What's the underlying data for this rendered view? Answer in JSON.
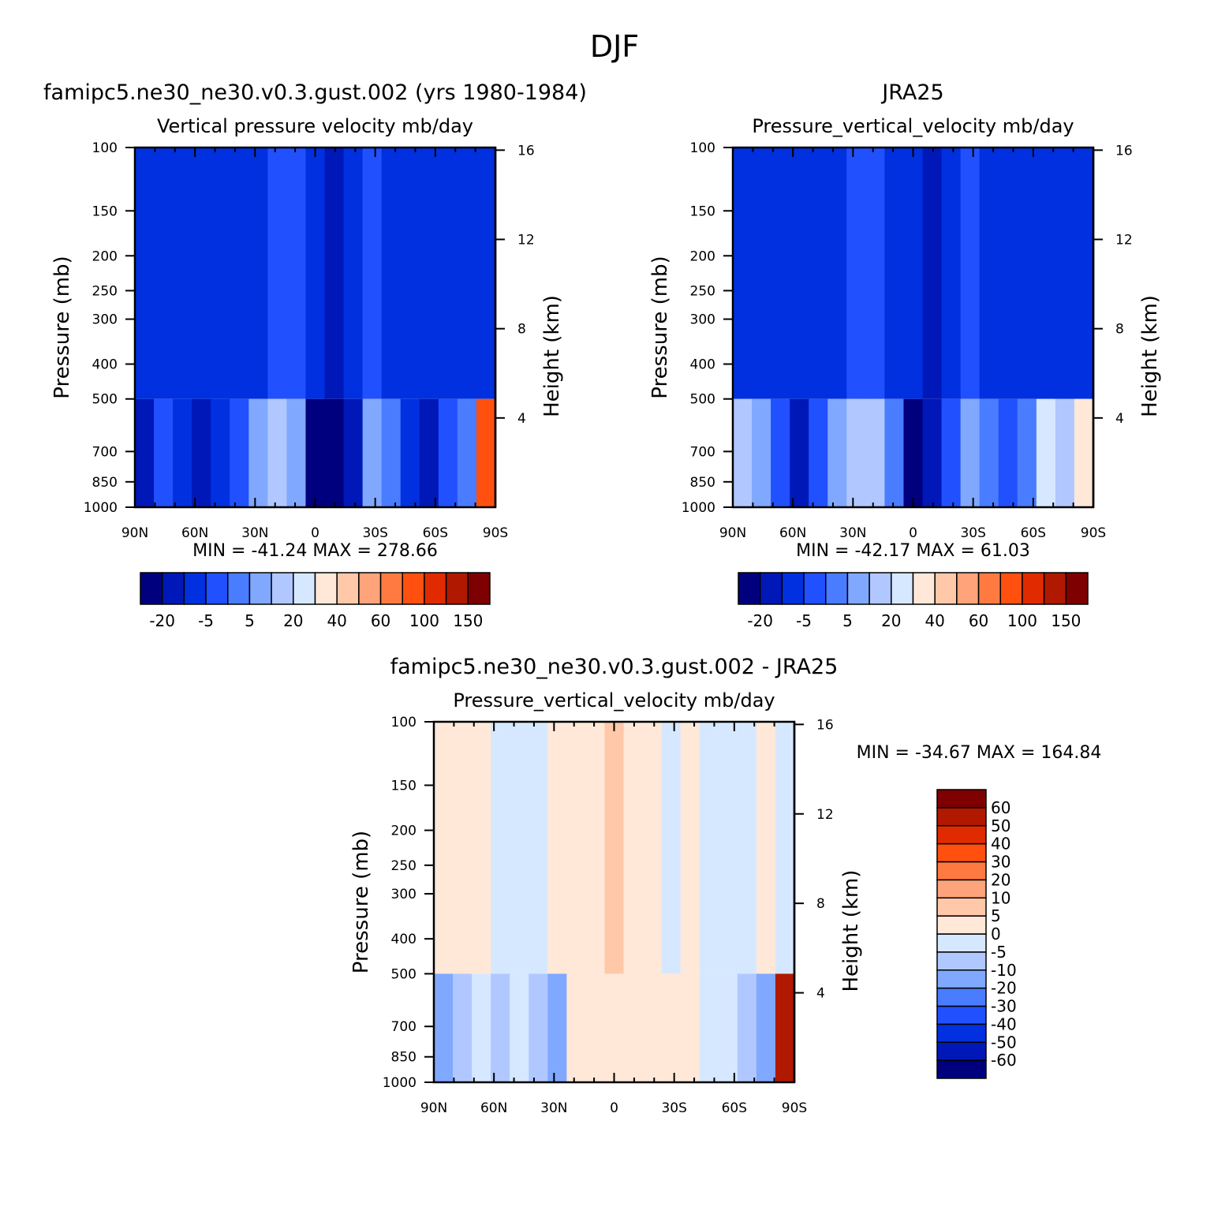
{
  "figure_title": "DJF",
  "chart_data": [
    {
      "type": "heatmap",
      "panel": "model",
      "title": "famipc5.ne30_ne30.v0.3.gust.002 (yrs 1980-1984)",
      "subtitle": "Vertical pressure velocity   mb/day",
      "ylabel": "Pressure (mb)",
      "ylabel_right": "Height (km)",
      "x_ticks": [
        "90N",
        "60N",
        "30N",
        "0",
        "30S",
        "60S",
        "90S"
      ],
      "y_ticks": [
        100,
        150,
        200,
        250,
        300,
        400,
        500,
        700,
        850,
        1000
      ],
      "y_ticks_right": [
        16,
        12,
        8,
        4
      ],
      "ylim": [
        1000,
        100
      ],
      "stats": "MIN = -41.24   MAX = 278.66",
      "colorbar": {
        "orientation": "horizontal",
        "tick_labels": [
          "-20",
          "-5",
          "5",
          "20",
          "40",
          "60",
          "100",
          "150"
        ]
      },
      "columns": [
        {
          "lat": 90,
          "top": 2,
          "bottom": 1
        },
        {
          "lat": 80,
          "top": 2,
          "bottom": 3
        },
        {
          "lat": 70,
          "top": 2,
          "bottom": 2
        },
        {
          "lat": 60,
          "top": 2,
          "bottom": 1
        },
        {
          "lat": 50,
          "top": 2,
          "bottom": 2
        },
        {
          "lat": 40,
          "top": 2,
          "bottom": 3
        },
        {
          "lat": 30,
          "top": 2,
          "bottom": 5
        },
        {
          "lat": 20,
          "top": 3,
          "bottom": 6
        },
        {
          "lat": 10,
          "top": 3,
          "bottom": 5
        },
        {
          "lat": 0,
          "top": 2,
          "bottom": 0
        },
        {
          "lat": -10,
          "top": 1,
          "bottom": 0
        },
        {
          "lat": -20,
          "top": 2,
          "bottom": 1
        },
        {
          "lat": -30,
          "top": 3,
          "bottom": 5
        },
        {
          "lat": -40,
          "top": 2,
          "bottom": 4
        },
        {
          "lat": -50,
          "top": 2,
          "bottom": 2
        },
        {
          "lat": -60,
          "top": 2,
          "bottom": 1
        },
        {
          "lat": -70,
          "top": 2,
          "bottom": 3
        },
        {
          "lat": -80,
          "top": 2,
          "bottom": 4
        },
        {
          "lat": -90,
          "top": 2,
          "bottom": 12
        }
      ]
    },
    {
      "type": "heatmap",
      "panel": "obs",
      "title": "JRA25",
      "subtitle": "Pressure_vertical_velocity   mb/day",
      "ylabel": "Pressure (mb)",
      "ylabel_right": "Height (km)",
      "x_ticks": [
        "90N",
        "60N",
        "30N",
        "0",
        "30S",
        "60S",
        "90S"
      ],
      "y_ticks": [
        100,
        150,
        200,
        250,
        300,
        400,
        500,
        700,
        850,
        1000
      ],
      "y_ticks_right": [
        16,
        12,
        8,
        4
      ],
      "ylim": [
        1000,
        100
      ],
      "stats": "MIN = -42.17   MAX =  61.03",
      "colorbar": {
        "orientation": "horizontal",
        "tick_labels": [
          "-20",
          "-5",
          "5",
          "20",
          "40",
          "60",
          "100",
          "150"
        ]
      },
      "columns": [
        {
          "lat": 90,
          "top": 2,
          "bottom": 6
        },
        {
          "lat": 80,
          "top": 2,
          "bottom": 5
        },
        {
          "lat": 70,
          "top": 2,
          "bottom": 3
        },
        {
          "lat": 60,
          "top": 2,
          "bottom": 1
        },
        {
          "lat": 50,
          "top": 2,
          "bottom": 3
        },
        {
          "lat": 40,
          "top": 2,
          "bottom": 5
        },
        {
          "lat": 30,
          "top": 3,
          "bottom": 6
        },
        {
          "lat": 20,
          "top": 3,
          "bottom": 6
        },
        {
          "lat": 10,
          "top": 2,
          "bottom": 4
        },
        {
          "lat": 0,
          "top": 2,
          "bottom": 0
        },
        {
          "lat": -10,
          "top": 1,
          "bottom": 1
        },
        {
          "lat": -20,
          "top": 2,
          "bottom": 3
        },
        {
          "lat": -30,
          "top": 3,
          "bottom": 5
        },
        {
          "lat": -40,
          "top": 2,
          "bottom": 4
        },
        {
          "lat": -50,
          "top": 2,
          "bottom": 3
        },
        {
          "lat": -60,
          "top": 2,
          "bottom": 4
        },
        {
          "lat": -70,
          "top": 2,
          "bottom": 7
        },
        {
          "lat": -80,
          "top": 2,
          "bottom": 6
        },
        {
          "lat": -90,
          "top": 2,
          "bottom": 8
        }
      ]
    },
    {
      "type": "heatmap",
      "panel": "difference",
      "title": "famipc5.ne30_ne30.v0.3.gust.002 - JRA25",
      "subtitle": "Pressure_vertical_velocity   mb/day",
      "ylabel": "Pressure (mb)",
      "ylabel_right": "Height (km)",
      "x_ticks": [
        "90N",
        "60N",
        "30N",
        "0",
        "30S",
        "60S",
        "90S"
      ],
      "y_ticks": [
        100,
        150,
        200,
        250,
        300,
        400,
        500,
        700,
        850,
        1000
      ],
      "y_ticks_right": [
        16,
        12,
        8,
        4
      ],
      "ylim": [
        1000,
        100
      ],
      "stats": "MIN = -34.67   MAX = 164.84",
      "colorbar": {
        "orientation": "vertical",
        "tick_labels": [
          "60",
          "50",
          "40",
          "30",
          "20",
          "10",
          "5",
          "0",
          "-5",
          "-10",
          "-20",
          "-30",
          "-40",
          "-50",
          "-60"
        ]
      },
      "columns": [
        {
          "lat": 90,
          "top": 8,
          "bottom": 5
        },
        {
          "lat": 80,
          "top": 8,
          "bottom": 6
        },
        {
          "lat": 70,
          "top": 8,
          "bottom": 7
        },
        {
          "lat": 60,
          "top": 7,
          "bottom": 6
        },
        {
          "lat": 50,
          "top": 7,
          "bottom": 7
        },
        {
          "lat": 40,
          "top": 7,
          "bottom": 6
        },
        {
          "lat": 30,
          "top": 8,
          "bottom": 5
        },
        {
          "lat": 20,
          "top": 8,
          "bottom": 8
        },
        {
          "lat": 10,
          "top": 8,
          "bottom": 8
        },
        {
          "lat": 0,
          "top": 9,
          "bottom": 8
        },
        {
          "lat": -10,
          "top": 8,
          "bottom": 8
        },
        {
          "lat": -20,
          "top": 8,
          "bottom": 8
        },
        {
          "lat": -30,
          "top": 7,
          "bottom": 8
        },
        {
          "lat": -40,
          "top": 8,
          "bottom": 8
        },
        {
          "lat": -50,
          "top": 7,
          "bottom": 7
        },
        {
          "lat": -60,
          "top": 7,
          "bottom": 7
        },
        {
          "lat": -70,
          "top": 7,
          "bottom": 6
        },
        {
          "lat": -80,
          "top": 8,
          "bottom": 5
        },
        {
          "lat": -90,
          "top": 7,
          "bottom": 14
        }
      ]
    }
  ],
  "palette": [
    "#00007f",
    "#0018b8",
    "#0030e0",
    "#2050ff",
    "#4a7cff",
    "#80a8ff",
    "#b0c8ff",
    "#d6e8ff",
    "#ffe8d8",
    "#ffc8a8",
    "#ffa47a",
    "#ff7a40",
    "#ff5010",
    "#e02a00",
    "#b01800",
    "#7f0000"
  ]
}
